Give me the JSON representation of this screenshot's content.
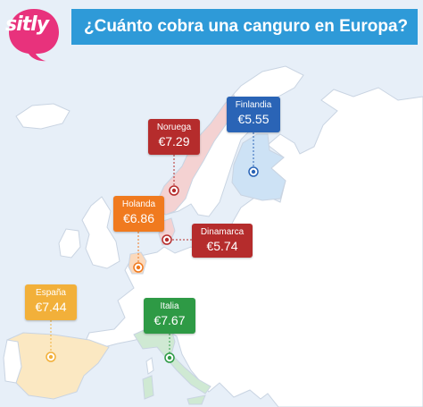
{
  "header": {
    "title": "¿Cuánto cobra una canguro en Europa?",
    "logo_text": "sitly"
  },
  "colors": {
    "background": "#e7eff8",
    "land": "#ffffff",
    "border": "#c9d4e2",
    "header_bar": "#2e9ad8",
    "logo": "#e8327c"
  },
  "countries": {
    "finlandia": {
      "name": "Finlandia",
      "price": "€5.55",
      "color": "#2a64b6",
      "highlight": "#cde2f5"
    },
    "noruega": {
      "name": "Noruega",
      "price": "€7.29",
      "color": "#b52c2c",
      "highlight": "#f4d2d2"
    },
    "holanda": {
      "name": "Holanda",
      "price": "€6.86",
      "color": "#f07a1f",
      "highlight": "#fbd9bc"
    },
    "dinamarca": {
      "name": "Dinamarca",
      "price": "€5.74",
      "color": "#b52c2c",
      "highlight": "#f4d2d2"
    },
    "espana": {
      "name": "España",
      "price": "€7.44",
      "color": "#f2b03a",
      "highlight": "#fbe8c2"
    },
    "italia": {
      "name": "Italia",
      "price": "€7.67",
      "color": "#2e9a45",
      "highlight": "#cfe9d3"
    }
  }
}
